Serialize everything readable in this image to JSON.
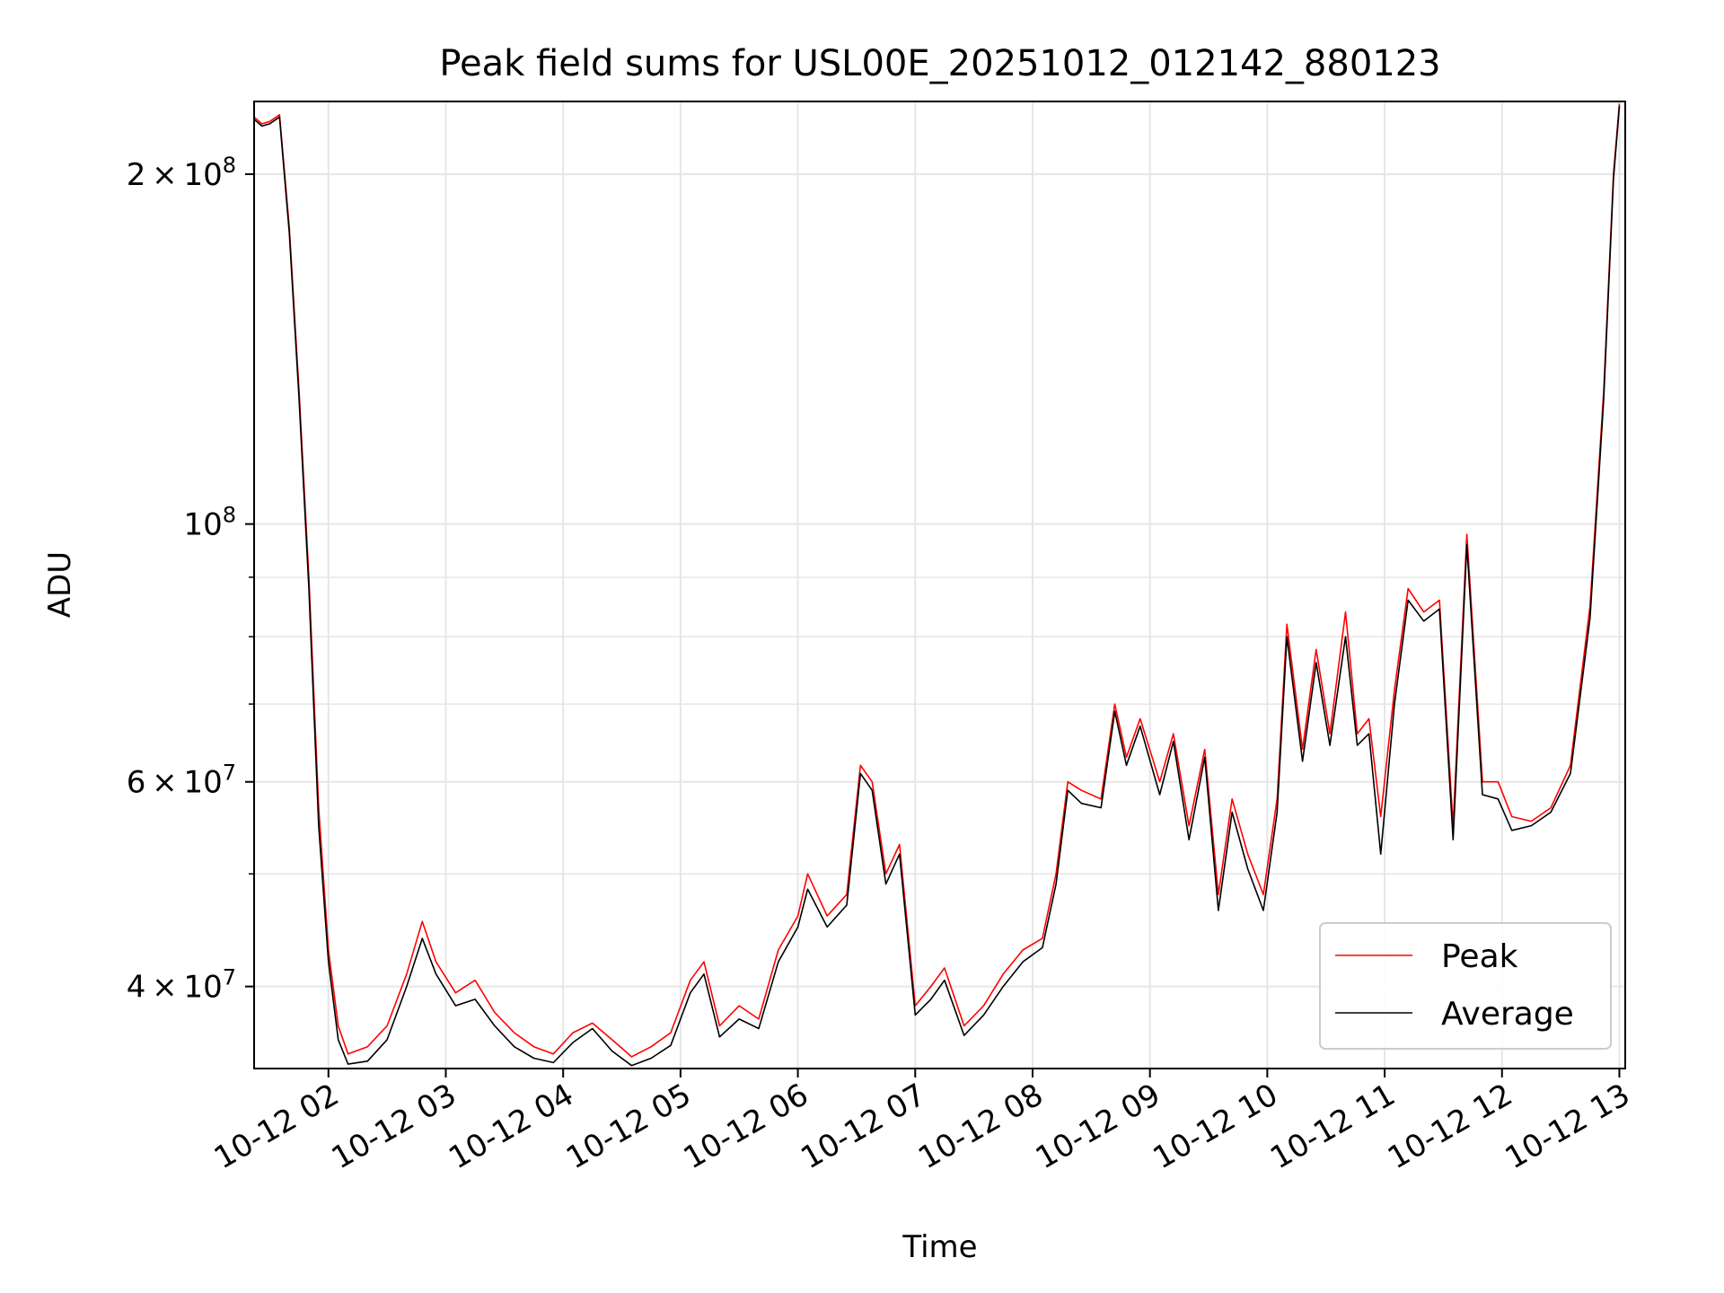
{
  "chart_data": {
    "type": "line",
    "title": "Peak field sums for USL00E_20251012_012142_880123",
    "xlabel": "Time",
    "ylabel": "ADU",
    "yscale": "log",
    "grid": true,
    "legend_position": "lower-right",
    "xlim": [
      "2025-10-12 01:22",
      "2025-10-12 13:03"
    ],
    "ylim": [
      34000000,
      231000000
    ],
    "x_ticks": [
      {
        "value": "2025-10-12 02:00",
        "label": "10-12 02"
      },
      {
        "value": "2025-10-12 03:00",
        "label": "10-12 03"
      },
      {
        "value": "2025-10-12 04:00",
        "label": "10-12 04"
      },
      {
        "value": "2025-10-12 05:00",
        "label": "10-12 05"
      },
      {
        "value": "2025-10-12 06:00",
        "label": "10-12 06"
      },
      {
        "value": "2025-10-12 07:00",
        "label": "10-12 07"
      },
      {
        "value": "2025-10-12 08:00",
        "label": "10-12 08"
      },
      {
        "value": "2025-10-12 09:00",
        "label": "10-12 09"
      },
      {
        "value": "2025-10-12 10:00",
        "label": "10-12 10"
      },
      {
        "value": "2025-10-12 11:00",
        "label": "10-12 11"
      },
      {
        "value": "2025-10-12 12:00",
        "label": "10-12 12"
      },
      {
        "value": "2025-10-12 13:00",
        "label": "10-12 13"
      }
    ],
    "y_major_ticks": [
      {
        "value": 40000000,
        "base": "4",
        "times": "×",
        "pow": "10",
        "exp": "7"
      },
      {
        "value": 60000000,
        "base": "6",
        "times": "×",
        "pow": "10",
        "exp": "7"
      },
      {
        "value": 100000000,
        "base": "",
        "times": "",
        "pow": "10",
        "exp": "8"
      },
      {
        "value": 200000000,
        "base": "2",
        "times": "×",
        "pow": "10",
        "exp": "8"
      }
    ],
    "y_minor_ticks": [
      50000000,
      70000000,
      80000000,
      90000000
    ],
    "series": [
      {
        "name": "Peak",
        "color": "#ff0000",
        "points": [
          [
            "2025-10-12 01:22",
            224000000
          ],
          [
            "2025-10-12 01:26",
            221000000
          ],
          [
            "2025-10-12 01:30",
            222000000
          ],
          [
            "2025-10-12 01:35",
            225000000
          ],
          [
            "2025-10-12 01:40",
            180000000
          ],
          [
            "2025-10-12 01:45",
            130000000
          ],
          [
            "2025-10-12 01:50",
            90000000
          ],
          [
            "2025-10-12 01:55",
            57000000
          ],
          [
            "2025-10-12 02:00",
            43000000
          ],
          [
            "2025-10-12 02:05",
            37000000
          ],
          [
            "2025-10-12 02:10",
            35000000
          ],
          [
            "2025-10-12 02:20",
            35500000
          ],
          [
            "2025-10-12 02:30",
            37000000
          ],
          [
            "2025-10-12 02:40",
            41000000
          ],
          [
            "2025-10-12 02:48",
            45500000
          ],
          [
            "2025-10-12 02:55",
            42000000
          ],
          [
            "2025-10-12 03:05",
            39500000
          ],
          [
            "2025-10-12 03:15",
            40500000
          ],
          [
            "2025-10-12 03:25",
            38000000
          ],
          [
            "2025-10-12 03:35",
            36500000
          ],
          [
            "2025-10-12 03:45",
            35500000
          ],
          [
            "2025-10-12 03:55",
            35000000
          ],
          [
            "2025-10-12 04:05",
            36500000
          ],
          [
            "2025-10-12 04:15",
            37200000
          ],
          [
            "2025-10-12 04:25",
            36000000
          ],
          [
            "2025-10-12 04:35",
            34800000
          ],
          [
            "2025-10-12 04:45",
            35500000
          ],
          [
            "2025-10-12 04:55",
            36500000
          ],
          [
            "2025-10-12 05:05",
            40500000
          ],
          [
            "2025-10-12 05:12",
            42000000
          ],
          [
            "2025-10-12 05:20",
            37000000
          ],
          [
            "2025-10-12 05:30",
            38500000
          ],
          [
            "2025-10-12 05:40",
            37500000
          ],
          [
            "2025-10-12 05:50",
            43000000
          ],
          [
            "2025-10-12 06:00",
            46000000
          ],
          [
            "2025-10-12 06:05",
            50000000
          ],
          [
            "2025-10-12 06:15",
            46000000
          ],
          [
            "2025-10-12 06:25",
            48000000
          ],
          [
            "2025-10-12 06:32",
            62000000
          ],
          [
            "2025-10-12 06:38",
            60000000
          ],
          [
            "2025-10-12 06:45",
            50000000
          ],
          [
            "2025-10-12 06:52",
            53000000
          ],
          [
            "2025-10-12 07:00",
            38500000
          ],
          [
            "2025-10-12 07:08",
            40000000
          ],
          [
            "2025-10-12 07:15",
            41500000
          ],
          [
            "2025-10-12 07:25",
            37000000
          ],
          [
            "2025-10-12 07:35",
            38500000
          ],
          [
            "2025-10-12 07:45",
            41000000
          ],
          [
            "2025-10-12 07:55",
            43000000
          ],
          [
            "2025-10-12 08:05",
            44000000
          ],
          [
            "2025-10-12 08:12",
            50000000
          ],
          [
            "2025-10-12 08:18",
            60000000
          ],
          [
            "2025-10-12 08:25",
            59000000
          ],
          [
            "2025-10-12 08:35",
            58000000
          ],
          [
            "2025-10-12 08:42",
            70000000
          ],
          [
            "2025-10-12 08:48",
            63000000
          ],
          [
            "2025-10-12 08:55",
            68000000
          ],
          [
            "2025-10-12 09:05",
            60000000
          ],
          [
            "2025-10-12 09:12",
            66000000
          ],
          [
            "2025-10-12 09:20",
            55000000
          ],
          [
            "2025-10-12 09:28",
            64000000
          ],
          [
            "2025-10-12 09:35",
            48000000
          ],
          [
            "2025-10-12 09:42",
            58000000
          ],
          [
            "2025-10-12 09:50",
            52000000
          ],
          [
            "2025-10-12 09:58",
            48000000
          ],
          [
            "2025-10-12 10:05",
            58000000
          ],
          [
            "2025-10-12 10:10",
            82000000
          ],
          [
            "2025-10-12 10:18",
            64000000
          ],
          [
            "2025-10-12 10:25",
            78000000
          ],
          [
            "2025-10-12 10:32",
            66000000
          ],
          [
            "2025-10-12 10:40",
            84000000
          ],
          [
            "2025-10-12 10:46",
            66000000
          ],
          [
            "2025-10-12 10:52",
            68000000
          ],
          [
            "2025-10-12 10:58",
            56000000
          ],
          [
            "2025-10-12 11:05",
            72000000
          ],
          [
            "2025-10-12 11:12",
            88000000
          ],
          [
            "2025-10-12 11:20",
            84000000
          ],
          [
            "2025-10-12 11:28",
            86000000
          ],
          [
            "2025-10-12 11:35",
            55000000
          ],
          [
            "2025-10-12 11:42",
            98000000
          ],
          [
            "2025-10-12 11:50",
            60000000
          ],
          [
            "2025-10-12 11:58",
            60000000
          ],
          [
            "2025-10-12 12:05",
            56000000
          ],
          [
            "2025-10-12 12:15",
            55500000
          ],
          [
            "2025-10-12 12:25",
            57000000
          ],
          [
            "2025-10-12 12:35",
            62000000
          ],
          [
            "2025-10-12 12:45",
            85000000
          ],
          [
            "2025-10-12 12:52",
            130000000
          ],
          [
            "2025-10-12 12:57",
            200000000
          ],
          [
            "2025-10-12 13:00",
            230000000
          ]
        ]
      },
      {
        "name": "Average",
        "color": "#000000",
        "points": [
          [
            "2025-10-12 01:22",
            223000000
          ],
          [
            "2025-10-12 01:26",
            220000000
          ],
          [
            "2025-10-12 01:30",
            221000000
          ],
          [
            "2025-10-12 01:35",
            224000000
          ],
          [
            "2025-10-12 01:40",
            178000000
          ],
          [
            "2025-10-12 01:45",
            128000000
          ],
          [
            "2025-10-12 01:50",
            88000000
          ],
          [
            "2025-10-12 01:55",
            55000000
          ],
          [
            "2025-10-12 02:00",
            42000000
          ],
          [
            "2025-10-12 02:05",
            36000000
          ],
          [
            "2025-10-12 02:10",
            34300000
          ],
          [
            "2025-10-12 02:20",
            34500000
          ],
          [
            "2025-10-12 02:30",
            36000000
          ],
          [
            "2025-10-12 02:40",
            40000000
          ],
          [
            "2025-10-12 02:48",
            44000000
          ],
          [
            "2025-10-12 02:55",
            41000000
          ],
          [
            "2025-10-12 03:05",
            38500000
          ],
          [
            "2025-10-12 03:15",
            39000000
          ],
          [
            "2025-10-12 03:25",
            37000000
          ],
          [
            "2025-10-12 03:35",
            35500000
          ],
          [
            "2025-10-12 03:45",
            34700000
          ],
          [
            "2025-10-12 03:55",
            34400000
          ],
          [
            "2025-10-12 04:05",
            35800000
          ],
          [
            "2025-10-12 04:15",
            36800000
          ],
          [
            "2025-10-12 04:25",
            35200000
          ],
          [
            "2025-10-12 04:35",
            34200000
          ],
          [
            "2025-10-12 04:45",
            34700000
          ],
          [
            "2025-10-12 04:55",
            35600000
          ],
          [
            "2025-10-12 05:05",
            39500000
          ],
          [
            "2025-10-12 05:12",
            41000000
          ],
          [
            "2025-10-12 05:20",
            36200000
          ],
          [
            "2025-10-12 05:30",
            37500000
          ],
          [
            "2025-10-12 05:40",
            36800000
          ],
          [
            "2025-10-12 05:50",
            42000000
          ],
          [
            "2025-10-12 06:00",
            45000000
          ],
          [
            "2025-10-12 06:05",
            48500000
          ],
          [
            "2025-10-12 06:15",
            45000000
          ],
          [
            "2025-10-12 06:25",
            47000000
          ],
          [
            "2025-10-12 06:32",
            61000000
          ],
          [
            "2025-10-12 06:38",
            59000000
          ],
          [
            "2025-10-12 06:45",
            49000000
          ],
          [
            "2025-10-12 06:52",
            52000000
          ],
          [
            "2025-10-12 07:00",
            37800000
          ],
          [
            "2025-10-12 07:08",
            39000000
          ],
          [
            "2025-10-12 07:15",
            40500000
          ],
          [
            "2025-10-12 07:25",
            36300000
          ],
          [
            "2025-10-12 07:35",
            37800000
          ],
          [
            "2025-10-12 07:45",
            40000000
          ],
          [
            "2025-10-12 07:55",
            42000000
          ],
          [
            "2025-10-12 08:05",
            43200000
          ],
          [
            "2025-10-12 08:12",
            49000000
          ],
          [
            "2025-10-12 08:18",
            59000000
          ],
          [
            "2025-10-12 08:25",
            57500000
          ],
          [
            "2025-10-12 08:35",
            57000000
          ],
          [
            "2025-10-12 08:42",
            69000000
          ],
          [
            "2025-10-12 08:48",
            62000000
          ],
          [
            "2025-10-12 08:55",
            67000000
          ],
          [
            "2025-10-12 09:05",
            58500000
          ],
          [
            "2025-10-12 09:12",
            65000000
          ],
          [
            "2025-10-12 09:20",
            53500000
          ],
          [
            "2025-10-12 09:28",
            63000000
          ],
          [
            "2025-10-12 09:35",
            46500000
          ],
          [
            "2025-10-12 09:42",
            56500000
          ],
          [
            "2025-10-12 09:50",
            50500000
          ],
          [
            "2025-10-12 09:58",
            46500000
          ],
          [
            "2025-10-12 10:05",
            56500000
          ],
          [
            "2025-10-12 10:10",
            80000000
          ],
          [
            "2025-10-12 10:18",
            62500000
          ],
          [
            "2025-10-12 10:25",
            76000000
          ],
          [
            "2025-10-12 10:32",
            64500000
          ],
          [
            "2025-10-12 10:40",
            80000000
          ],
          [
            "2025-10-12 10:46",
            64500000
          ],
          [
            "2025-10-12 10:52",
            66000000
          ],
          [
            "2025-10-12 10:58",
            52000000
          ],
          [
            "2025-10-12 11:05",
            70000000
          ],
          [
            "2025-10-12 11:12",
            86000000
          ],
          [
            "2025-10-12 11:20",
            82500000
          ],
          [
            "2025-10-12 11:28",
            84500000
          ],
          [
            "2025-10-12 11:35",
            53500000
          ],
          [
            "2025-10-12 11:42",
            96000000
          ],
          [
            "2025-10-12 11:50",
            58500000
          ],
          [
            "2025-10-12 11:58",
            58000000
          ],
          [
            "2025-10-12 12:05",
            54500000
          ],
          [
            "2025-10-12 12:15",
            55000000
          ],
          [
            "2025-10-12 12:25",
            56500000
          ],
          [
            "2025-10-12 12:35",
            61000000
          ],
          [
            "2025-10-12 12:45",
            83000000
          ],
          [
            "2025-10-12 12:52",
            128000000
          ],
          [
            "2025-10-12 12:57",
            198000000
          ],
          [
            "2025-10-12 13:00",
            229000000
          ]
        ]
      }
    ]
  }
}
